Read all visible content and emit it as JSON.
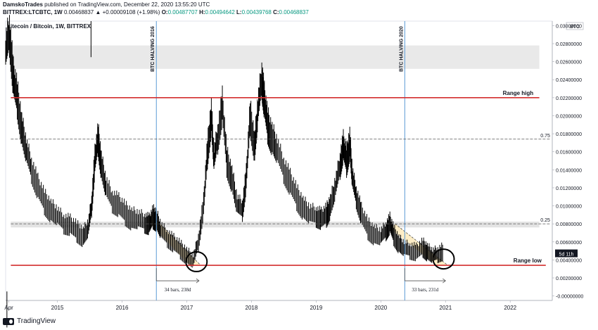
{
  "header": {
    "author": "DamskoTrades",
    "published_text": "published on TradingView.com, December 22, 2020 13:55:20 UTC",
    "symbol": "BITTREX:LTCBTC, 1W",
    "change": "0.00468837 ▲ +0.00009108 (+1.98%)",
    "o_label": "O:",
    "o_value": "0.00487707",
    "h_label": "H:",
    "h_value": "0.00494642",
    "l_label": "L:",
    "l_value": "0.00439768",
    "c_label": "C:",
    "c_value": "0.00468837"
  },
  "footer": {
    "brand": "TradingView"
  },
  "chart_data": {
    "type": "candlestick",
    "title": "Litecoin / Bitcoin, 1W, BITTREX",
    "currency": "BTC",
    "x_ticks": [
      "Apr",
      "2015",
      "2016",
      "2017",
      "2018",
      "2019",
      "2020",
      "2021",
      "2022"
    ],
    "y_ticks": [
      "0.03000000",
      "0.02800000",
      "0.02600000",
      "0.02400000",
      "0.02200000",
      "0.02000000",
      "0.01800000",
      "0.01600000",
      "0.01400000",
      "0.01200000",
      "0.01000000",
      "0.00800000",
      "0.00600000",
      "0.00400000",
      "0.00200000",
      "-0.00000000"
    ],
    "ylim": [
      -0.0005,
      0.0305
    ],
    "xlim": [
      2014.2,
      2022.65
    ],
    "price_label": "5d 11h",
    "last_price": 0.00468837,
    "series": [
      {
        "name": "LTCBTC",
        "points": [
          [
            2014.2,
            0.027
          ],
          [
            2014.26,
            0.029
          ],
          [
            2014.32,
            0.024
          ],
          [
            2014.38,
            0.022
          ],
          [
            2014.45,
            0.0185
          ],
          [
            2014.52,
            0.016
          ],
          [
            2014.6,
            0.014
          ],
          [
            2014.7,
            0.012
          ],
          [
            2014.8,
            0.0105
          ],
          [
            2014.9,
            0.0095
          ],
          [
            2015.0,
            0.0088
          ],
          [
            2015.1,
            0.008
          ],
          [
            2015.2,
            0.0078
          ],
          [
            2015.3,
            0.0072
          ],
          [
            2015.4,
            0.0066
          ],
          [
            2015.48,
            0.0075
          ],
          [
            2015.53,
            0.01
          ],
          [
            2015.58,
            0.015
          ],
          [
            2015.63,
            0.0175
          ],
          [
            2015.68,
            0.0145
          ],
          [
            2015.75,
            0.012
          ],
          [
            2015.85,
            0.0105
          ],
          [
            2015.95,
            0.01
          ],
          [
            2016.05,
            0.0092
          ],
          [
            2016.15,
            0.0086
          ],
          [
            2016.25,
            0.0084
          ],
          [
            2016.35,
            0.0081
          ],
          [
            2016.42,
            0.0079
          ],
          [
            2016.48,
            0.0088
          ],
          [
            2016.53,
            0.0085
          ],
          [
            2016.6,
            0.0072
          ],
          [
            2016.7,
            0.0064
          ],
          [
            2016.8,
            0.0058
          ],
          [
            2016.9,
            0.0052
          ],
          [
            2017.0,
            0.0045
          ],
          [
            2017.1,
            0.0038
          ],
          [
            2017.18,
            0.006
          ],
          [
            2017.26,
            0.01
          ],
          [
            2017.32,
            0.016
          ],
          [
            2017.38,
            0.02
          ],
          [
            2017.42,
            0.015
          ],
          [
            2017.48,
            0.0175
          ],
          [
            2017.55,
            0.021
          ],
          [
            2017.62,
            0.015
          ],
          [
            2017.7,
            0.013
          ],
          [
            2017.78,
            0.01
          ],
          [
            2017.86,
            0.0095
          ],
          [
            2017.92,
            0.013
          ],
          [
            2017.98,
            0.02
          ],
          [
            2018.05,
            0.0165
          ],
          [
            2018.1,
            0.0205
          ],
          [
            2018.16,
            0.024
          ],
          [
            2018.2,
            0.0215
          ],
          [
            2018.25,
            0.019
          ],
          [
            2018.32,
            0.0175
          ],
          [
            2018.4,
            0.016
          ],
          [
            2018.5,
            0.014
          ],
          [
            2018.6,
            0.0125
          ],
          [
            2018.7,
            0.011
          ],
          [
            2018.8,
            0.0098
          ],
          [
            2018.9,
            0.009
          ],
          [
            2019.0,
            0.0088
          ],
          [
            2019.08,
            0.0085
          ],
          [
            2019.16,
            0.009
          ],
          [
            2019.22,
            0.01
          ],
          [
            2019.3,
            0.012
          ],
          [
            2019.37,
            0.0145
          ],
          [
            2019.42,
            0.0165
          ],
          [
            2019.47,
            0.015
          ],
          [
            2019.52,
            0.017
          ],
          [
            2019.56,
            0.013
          ],
          [
            2019.62,
            0.011
          ],
          [
            2019.7,
            0.009
          ],
          [
            2019.8,
            0.0075
          ],
          [
            2019.9,
            0.0068
          ],
          [
            2020.0,
            0.0065
          ],
          [
            2020.08,
            0.0072
          ],
          [
            2020.14,
            0.008
          ],
          [
            2020.2,
            0.0068
          ],
          [
            2020.28,
            0.0058
          ],
          [
            2020.36,
            0.0052
          ],
          [
            2020.45,
            0.005
          ],
          [
            2020.55,
            0.0048
          ],
          [
            2020.65,
            0.0054
          ],
          [
            2020.72,
            0.0049
          ],
          [
            2020.8,
            0.0044
          ],
          [
            2020.88,
            0.0046
          ],
          [
            2020.97,
            0.0049
          ]
        ]
      }
    ],
    "annotations": {
      "range_high": {
        "label": "Range high",
        "value": 0.022
      },
      "range_low": {
        "label": "Range low",
        "value": 0.0034
      },
      "fib_075": {
        "label": "0.75",
        "value": 0.0174
      },
      "fib_025": {
        "label": "0.25",
        "value": 0.008
      },
      "top_zone": {
        "from": 0.0252,
        "to": 0.0278
      },
      "halvings": [
        {
          "label": "BTC HALVING 2016",
          "x": 2016.53
        },
        {
          "label": "BTC HALVING 2020",
          "x": 2020.37
        }
      ],
      "measures": [
        {
          "label": "34 bars, 238d",
          "x0": 2016.53,
          "x1": 2017.19
        },
        {
          "label": "33 bars, 231d",
          "x0": 2020.37,
          "x1": 2021.0
        }
      ],
      "circles": [
        {
          "x": 2017.15,
          "y": 0.0038
        },
        {
          "x": 2020.97,
          "y": 0.0041
        }
      ],
      "channels": [
        {
          "x0": 2016.45,
          "y0": 0.009,
          "x1": 2017.15,
          "y1": 0.0034
        },
        {
          "x0": 2020.22,
          "y0": 0.008,
          "x1": 2020.97,
          "y1": 0.0034
        }
      ]
    },
    "colors": {
      "range_line": "#d32f2f",
      "halving_line": "#5b9bd5",
      "fib_line": "#555555",
      "channel_fill": "#fde9b8",
      "zone_fill": "#e0e0e0",
      "candle": "#000000",
      "label_bg": "#131722"
    }
  }
}
